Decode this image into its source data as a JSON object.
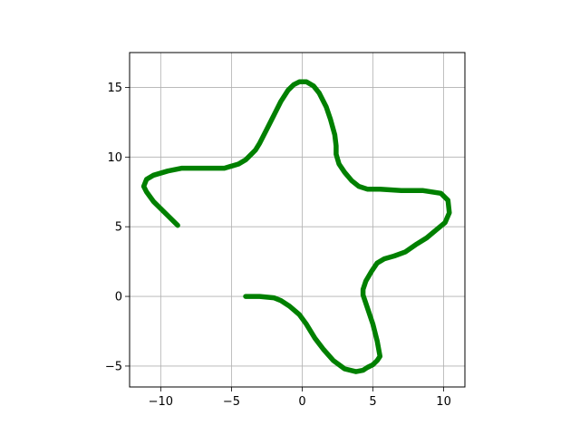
{
  "chart_data": {
    "type": "line",
    "title": "",
    "xlabel": "",
    "ylabel": "",
    "xlim": [
      -12.2,
      11.5
    ],
    "ylim": [
      -6.5,
      17.5
    ],
    "xticks": [
      -10,
      -5,
      0,
      5,
      10
    ],
    "yticks": [
      -5,
      0,
      5,
      10,
      15
    ],
    "xtick_labels": [
      "−10",
      "−5",
      "0",
      "5",
      "10"
    ],
    "ytick_labels": [
      "−5",
      "0",
      "5",
      "10",
      "15"
    ],
    "grid": true,
    "legend": "none",
    "series": [
      {
        "color": "#008000",
        "x": [
          -4.0,
          -3.0,
          -2.0,
          -1.5,
          -0.9,
          -0.2,
          0.3,
          0.9,
          1.5,
          2.2,
          3.0,
          3.8,
          4.3,
          4.6,
          5.0,
          5.3,
          5.5,
          5.3,
          5.0,
          4.6,
          4.3,
          4.3,
          4.5,
          4.9,
          5.3,
          5.8,
          6.5,
          7.3,
          8.0,
          8.8,
          9.5,
          10.1,
          10.4,
          10.3,
          9.8,
          8.5,
          7.0,
          5.5,
          4.6,
          4.0,
          3.5,
          3.0,
          2.6,
          2.4,
          2.4,
          2.3,
          2.0,
          1.7,
          1.2,
          0.8,
          0.3,
          -0.2,
          -0.6,
          -1.0,
          -1.5,
          -2.0,
          -2.5,
          -3.0,
          -3.3,
          -3.6,
          -4.0,
          -4.5,
          -5.5,
          -6.5,
          -7.5,
          -8.5,
          -9.5,
          -10.5,
          -11.0,
          -11.2,
          -11.0,
          -10.5,
          -9.7,
          -8.8
        ],
        "y": [
          0.0,
          0.0,
          -0.1,
          -0.3,
          -0.7,
          -1.3,
          -2.0,
          -3.0,
          -3.8,
          -4.6,
          -5.2,
          -5.4,
          -5.3,
          -5.1,
          -4.9,
          -4.6,
          -4.3,
          -3.2,
          -2.0,
          -0.8,
          0.1,
          0.5,
          1.1,
          1.8,
          2.4,
          2.7,
          2.9,
          3.2,
          3.7,
          4.2,
          4.8,
          5.3,
          6.0,
          6.9,
          7.4,
          7.6,
          7.6,
          7.7,
          7.7,
          7.9,
          8.3,
          8.9,
          9.5,
          10.2,
          10.8,
          11.6,
          12.7,
          13.6,
          14.6,
          15.1,
          15.4,
          15.4,
          15.2,
          14.8,
          14.0,
          13.0,
          12.0,
          11.0,
          10.5,
          10.2,
          9.8,
          9.5,
          9.2,
          9.2,
          9.2,
          9.2,
          9.0,
          8.7,
          8.4,
          7.9,
          7.5,
          6.8,
          6.0,
          5.1
        ]
      }
    ]
  }
}
